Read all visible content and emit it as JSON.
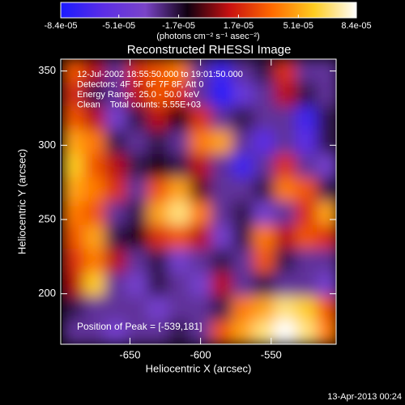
{
  "chart_data": {
    "type": "heatmap",
    "title": "Reconstructed RHESSI Image",
    "colorbar_label": "(photons cm⁻² s⁻¹ asec⁻²)",
    "xlabel": "Heliocentric X (arcsec)",
    "ylabel": "Heliocentric Y (arcsec)",
    "annotations": [
      "12-Jul-2002 18:55:50.000 to 19:01:50.000",
      "Detectors: 4F 5F 6F 7F 8F, Att 0",
      "Energy Range: 25.0 - 50.0 keV",
      "Clean    Total counts: 5.55E+03"
    ],
    "peak_label": "Position of Peak = [-539,181]",
    "footer": "13-Apr-2013 00:24",
    "xlim": [
      -699,
      -504
    ],
    "ylim": [
      166,
      358
    ],
    "xticks": [
      -650,
      -600,
      -550
    ],
    "yticks": [
      200,
      250,
      300,
      350
    ],
    "clim": [
      -8.4e-05,
      8.4e-05
    ],
    "cticks": [
      {
        "value": -8.4e-05,
        "label": "-8.4e-05"
      },
      {
        "value": -5.1e-05,
        "label": "-5.1e-05"
      },
      {
        "value": -1.7e-05,
        "label": "-1.7e-05"
      },
      {
        "value": 1.7e-05,
        "label": "1.7e-05"
      },
      {
        "value": 5.1e-05,
        "label": "5.1e-05"
      },
      {
        "value": 8.4e-05,
        "label": "8.4e-05"
      }
    ],
    "colormap": [
      "#1a1aff",
      "#5b2de6",
      "#7a44c8",
      "#100010",
      "#c81010",
      "#ff6a00",
      "#ffcc20",
      "#ffffff"
    ],
    "x": [
      -690,
      -675,
      -660,
      -645,
      -630,
      -615,
      -600,
      -585,
      -570,
      -555,
      -540,
      -525,
      -510
    ],
    "y": [
      350,
      334,
      318,
      302,
      286,
      270,
      254,
      238,
      222,
      206,
      190,
      174
    ],
    "z": [
      [
        3e-05,
        1e-05,
        -3e-05,
        2e-05,
        3e-05,
        4e-05,
        -3e-05,
        -7e-05,
        -3e-05,
        -2e-05,
        2e-05,
        -3e-05,
        -3e-05
      ],
      [
        2e-05,
        -2e-05,
        -3e-05,
        1e-05,
        3e-05,
        2e-05,
        -3e-05,
        -8e-05,
        -5e-05,
        -3e-05,
        1e-05,
        -2e-05,
        -3e-05
      ],
      [
        3e-05,
        1e-05,
        -4e-05,
        -2e-05,
        1e-05,
        -1e-05,
        2e-05,
        -3e-05,
        -2e-05,
        -3e-05,
        -3e-05,
        -7e-05,
        -2e-05
      ],
      [
        5e-05,
        4e-05,
        -2e-05,
        -3e-05,
        -2e-05,
        -3e-05,
        4e-05,
        5e-05,
        -3e-05,
        -6e-05,
        -3e-05,
        -6e-05,
        -2e-05
      ],
      [
        6e-05,
        3e-05,
        1e-05,
        -2e-05,
        -1e-05,
        -2e-05,
        1e-05,
        -3e-05,
        -7e-05,
        -3e-05,
        2e-05,
        -3e-05,
        -4e-05
      ],
      [
        5e-05,
        4e-05,
        2e-05,
        -3e-05,
        3e-05,
        5e-05,
        0,
        -3e-05,
        -3e-05,
        -2e-05,
        4e-05,
        3e-05,
        -2e-05
      ],
      [
        4e-05,
        3e-05,
        -3e-05,
        -2e-05,
        5e-05,
        7e-05,
        4e-05,
        -3e-05,
        -2e-05,
        -4e-05,
        -3e-05,
        2e-05,
        5e-05
      ],
      [
        3e-05,
        5e-05,
        -2e-05,
        -1e-05,
        2e-05,
        3e-05,
        1e-05,
        -4e-05,
        -2e-05,
        4e-05,
        1e-05,
        3e-05,
        2e-05
      ],
      [
        2e-05,
        4e-05,
        1e-05,
        -3e-05,
        -2e-05,
        -4e-05,
        -3e-05,
        -2e-05,
        -3e-05,
        3e-05,
        -2e-05,
        -3e-05,
        -3e-05
      ],
      [
        1e-05,
        6e-05,
        -3e-05,
        -4e-05,
        -2e-05,
        -3e-05,
        -4e-05,
        1e-05,
        -3e-05,
        -2e-05,
        -3e-05,
        -3e-05,
        -4e-05
      ],
      [
        -2e-05,
        -3e-05,
        -3e-05,
        -3e-05,
        -4e-05,
        -3e-05,
        -3e-05,
        -2e-05,
        4e-05,
        5e-05,
        7e-05,
        6e-05,
        3e-05
      ],
      [
        -3e-05,
        -3e-05,
        -4e-05,
        -3e-05,
        -3e-05,
        -2e-05,
        -3e-05,
        3e-05,
        5e-05,
        7e-05,
        8.4e-05,
        7e-05,
        4e-05
      ]
    ]
  }
}
